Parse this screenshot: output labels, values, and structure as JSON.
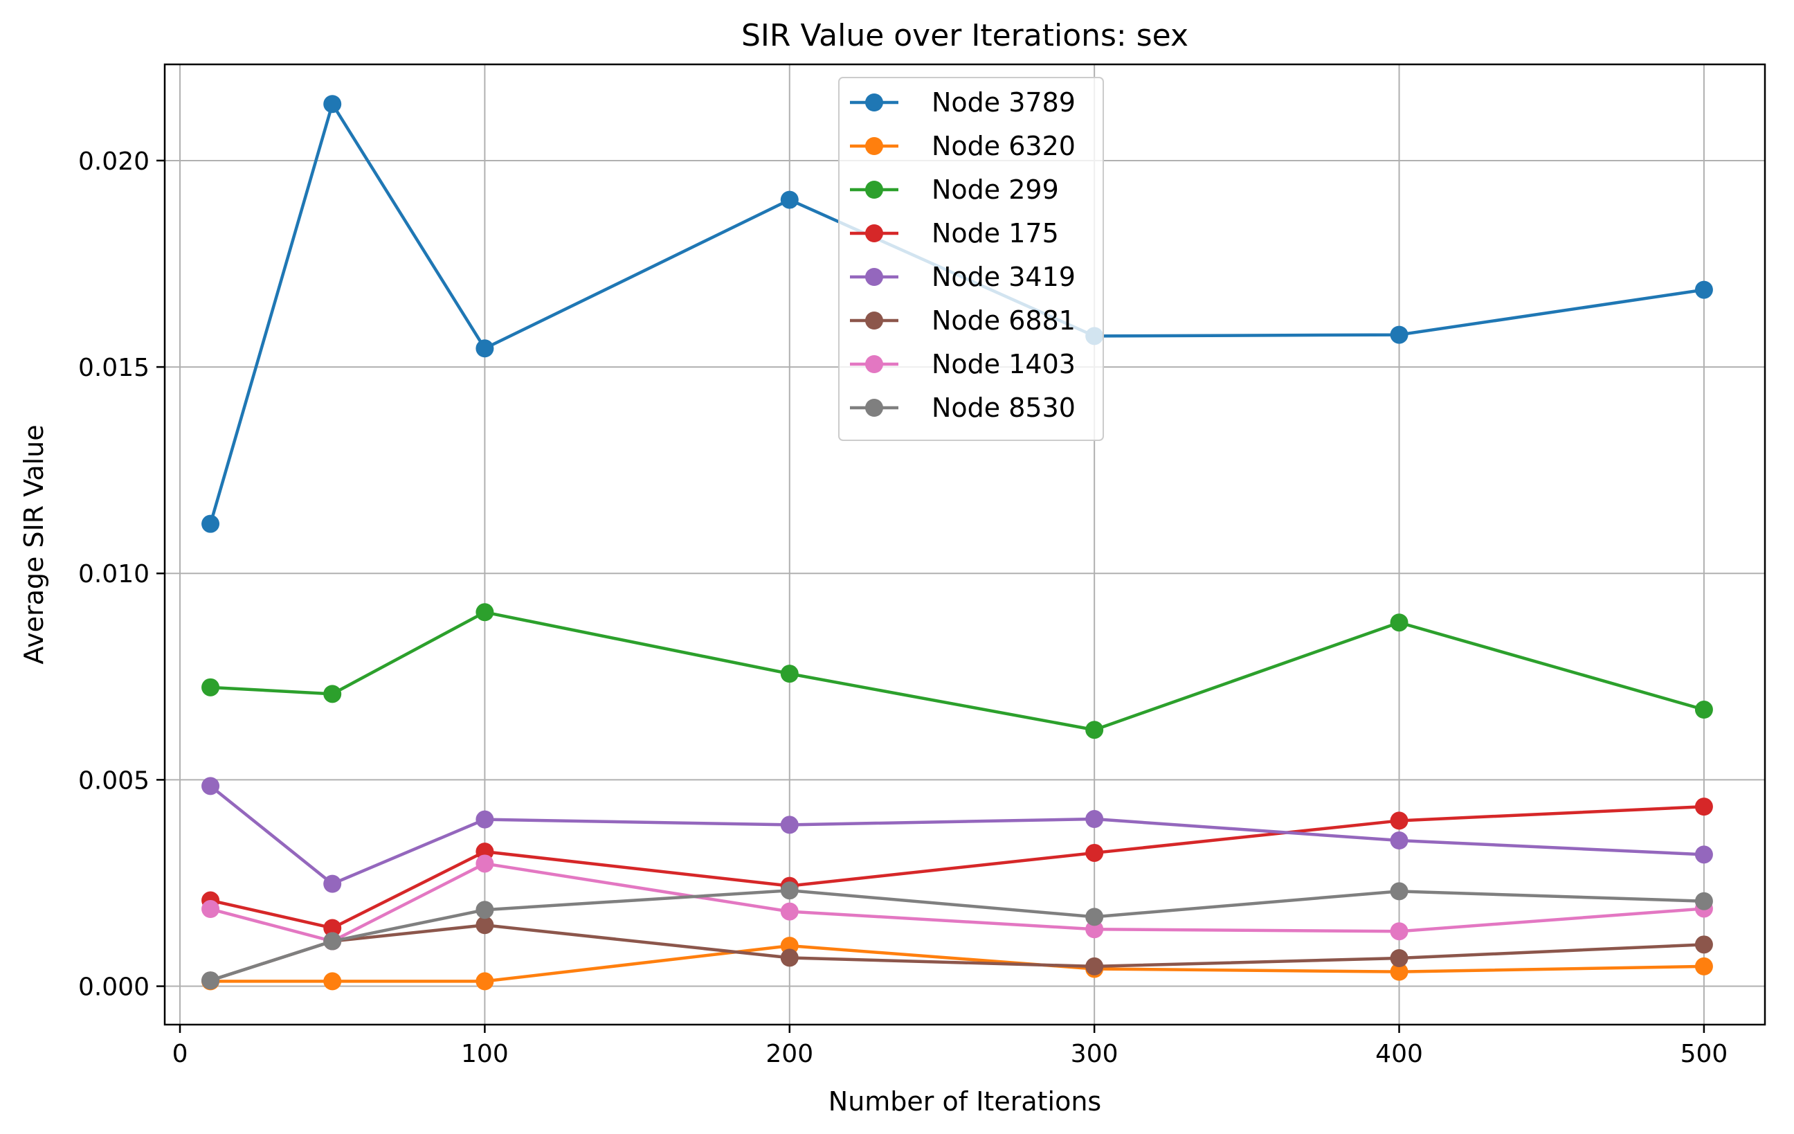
{
  "chart_data": {
    "type": "line",
    "title": "SIR Value over Iterations: sex",
    "xlabel": "Number of Iterations",
    "ylabel": "Average SIR Value",
    "xlim": [
      -5,
      520
    ],
    "ylim": [
      -0.00093,
      0.02233
    ],
    "xticks": [
      0,
      100,
      200,
      300,
      400,
      500
    ],
    "yticks": [
      0.0,
      0.005,
      0.01,
      0.015,
      0.02
    ],
    "ytick_labels": [
      "0.000",
      "0.005",
      "0.010",
      "0.015",
      "0.020"
    ],
    "grid": true,
    "legend_position": "top-center",
    "x": [
      10,
      50,
      100,
      200,
      300,
      400,
      500
    ],
    "series": [
      {
        "name": "Node 3789",
        "color": "#1f77b4",
        "values": [
          0.0112,
          0.02137,
          0.01545,
          0.01905,
          0.01575,
          0.01578,
          0.01687
        ]
      },
      {
        "name": "Node 6320",
        "color": "#ff7f0e",
        "values": [
          0.00012,
          0.00012,
          0.00012,
          0.00098,
          0.00042,
          0.00035,
          0.00048
        ]
      },
      {
        "name": "Node 299",
        "color": "#2ca02c",
        "values": [
          0.00724,
          0.00708,
          0.00906,
          0.00757,
          0.00621,
          0.00881,
          0.0067
        ]
      },
      {
        "name": "Node 175",
        "color": "#d62728",
        "values": [
          0.00208,
          0.00141,
          0.00326,
          0.00243,
          0.00323,
          0.00401,
          0.00435
        ]
      },
      {
        "name": "Node 3419",
        "color": "#9467bd",
        "values": [
          0.00485,
          0.00248,
          0.00404,
          0.00391,
          0.00405,
          0.00353,
          0.00319
        ]
      },
      {
        "name": "Node 6881",
        "color": "#8c564b",
        "values": [
          0.00014,
          0.00109,
          0.00148,
          0.00069,
          0.00048,
          0.00068,
          0.00101
        ]
      },
      {
        "name": "Node 1403",
        "color": "#e377c2",
        "values": [
          0.00187,
          0.00109,
          0.00297,
          0.00181,
          0.00138,
          0.00133,
          0.00188
        ]
      },
      {
        "name": "Node 8530",
        "color": "#7f7f7f",
        "values": [
          0.00014,
          0.00109,
          0.00185,
          0.00232,
          0.00168,
          0.0023,
          0.00206
        ]
      }
    ]
  }
}
